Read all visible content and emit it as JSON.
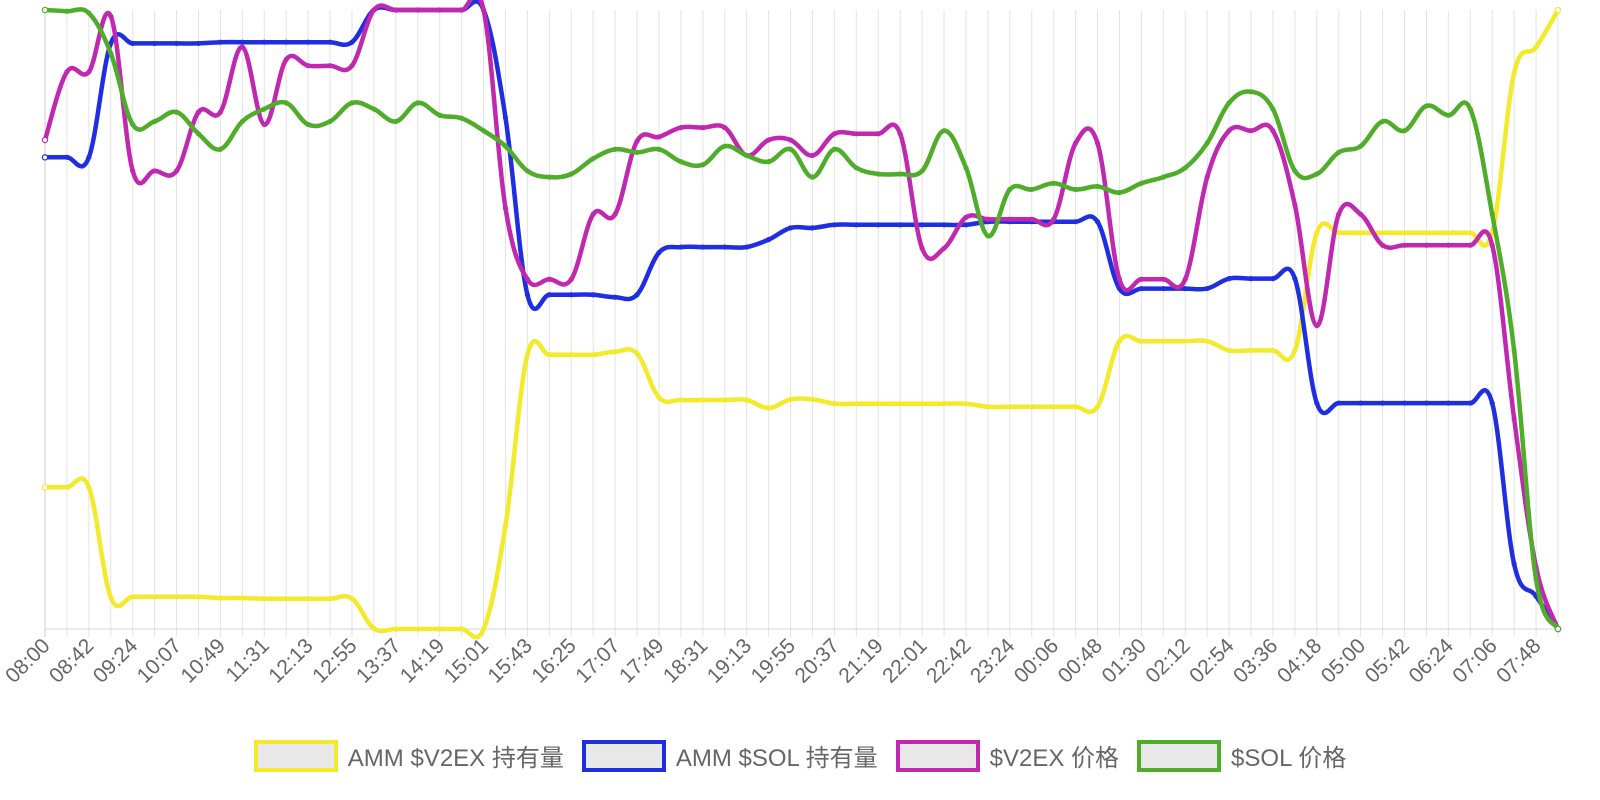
{
  "chart_data": {
    "type": "line",
    "title": "",
    "xlabel": "",
    "ylabel": "",
    "grid": {
      "vertical": true,
      "horizontal": false
    },
    "legend_position": "bottom",
    "y_axis_visible": false,
    "categories": [
      "08:00",
      "08:21",
      "08:42",
      "09:03",
      "09:24",
      "09:45",
      "10:07",
      "10:28",
      "10:49",
      "11:10",
      "11:31",
      "11:52",
      "12:13",
      "12:34",
      "12:55",
      "13:16",
      "13:37",
      "13:58",
      "14:19",
      "14:40",
      "15:01",
      "15:22",
      "15:43",
      "16:04",
      "16:25",
      "16:46",
      "17:07",
      "17:28",
      "17:49",
      "18:10",
      "18:31",
      "18:52",
      "19:13",
      "19:34",
      "19:55",
      "20:16",
      "20:37",
      "20:58",
      "21:19",
      "21:40",
      "22:01",
      "22:22",
      "22:42",
      "23:03",
      "23:24",
      "23:45",
      "00:06",
      "00:27",
      "00:48",
      "01:09",
      "01:30",
      "01:51",
      "02:12",
      "02:33",
      "02:54",
      "03:15",
      "03:36",
      "03:57",
      "04:18",
      "04:39",
      "05:00",
      "05:21",
      "05:42",
      "06:03",
      "06:24",
      "06:45",
      "07:06",
      "07:27",
      "07:48",
      "08:09"
    ],
    "tick_labels": [
      "08:00",
      "08:42",
      "09:24",
      "10:07",
      "10:49",
      "11:31",
      "12:13",
      "12:55",
      "13:37",
      "14:19",
      "15:01",
      "15:43",
      "16:25",
      "17:07",
      "17:49",
      "18:31",
      "19:13",
      "19:55",
      "20:37",
      "21:19",
      "22:01",
      "22:42",
      "23:24",
      "00:06",
      "00:48",
      "01:30",
      "02:12",
      "02:54",
      "03:36",
      "04:18",
      "05:00",
      "05:42",
      "06:24",
      "07:06",
      "07:48"
    ],
    "series": [
      {
        "name": "AMM $V2EX 持有量",
        "color": "#f2ea2a",
        "values": [
          22.9,
          22.9,
          22.9,
          5.1,
          5.2,
          5.2,
          5.2,
          5.2,
          5.0,
          5.0,
          4.9,
          4.9,
          4.9,
          4.9,
          4.9,
          0.1,
          0.0,
          0.0,
          0.0,
          0.0,
          0.0,
          16.7,
          44.3,
          44.3,
          44.3,
          44.3,
          44.8,
          44.5,
          37.4,
          37.0,
          37.0,
          37.0,
          37.0,
          35.7,
          37.1,
          37.1,
          36.4,
          36.4,
          36.4,
          36.4,
          36.4,
          36.4,
          36.4,
          35.9,
          35.9,
          35.9,
          35.9,
          35.9,
          35.9,
          46.5,
          46.5,
          46.5,
          46.5,
          46.5,
          45.0,
          45.0,
          45.0,
          45.0,
          64.0,
          64.0,
          64.0,
          64.0,
          64.0,
          64.0,
          64.0,
          64.0,
          64.0,
          89.8,
          94.0,
          100.0
        ]
      },
      {
        "name": "AMM $SOL 持有量",
        "color": "#1e2ee0",
        "values": [
          76.2,
          76.2,
          76.2,
          94.6,
          94.6,
          94.6,
          94.6,
          94.6,
          94.8,
          94.8,
          94.8,
          94.8,
          94.8,
          94.8,
          94.8,
          100.0,
          100.0,
          100.0,
          100.0,
          100.0,
          100.0,
          82.6,
          54.0,
          54.0,
          54.0,
          54.0,
          53.6,
          54.0,
          60.8,
          61.7,
          61.7,
          61.7,
          61.7,
          62.9,
          64.8,
          64.8,
          65.3,
          65.3,
          65.3,
          65.3,
          65.3,
          65.3,
          65.3,
          65.8,
          65.8,
          65.8,
          65.8,
          65.8,
          65.8,
          55.0,
          55.0,
          55.0,
          55.0,
          55.0,
          56.6,
          56.6,
          56.6,
          56.6,
          36.5,
          36.5,
          36.5,
          36.5,
          36.5,
          36.5,
          36.5,
          36.5,
          36.5,
          10.5,
          5.3,
          0.0
        ]
      },
      {
        "name": "$V2EX 价格",
        "color": "#c028b0",
        "values": [
          79.0,
          90.0,
          90.0,
          99.0,
          74.0,
          74.0,
          74.0,
          83.5,
          83.5,
          94.0,
          81.5,
          92.0,
          91.0,
          91.0,
          91.0,
          100.0,
          100.0,
          100.0,
          100.0,
          100.0,
          100.0,
          68.0,
          56.5,
          56.5,
          56.5,
          67.0,
          67.0,
          78.8,
          79.5,
          81.0,
          81.0,
          81.0,
          76.5,
          79.0,
          79.0,
          76.5,
          80.0,
          80.0,
          80.0,
          80.0,
          61.5,
          61.5,
          66.5,
          66.2,
          66.2,
          66.2,
          66.2,
          78.5,
          78.5,
          56.5,
          56.5,
          56.5,
          56.5,
          73.0,
          80.5,
          80.5,
          80.5,
          68.5,
          49.0,
          67.0,
          67.0,
          62.0,
          62.0,
          62.0,
          62.0,
          62.0,
          62.0,
          34.0,
          10.0,
          0.0
        ]
      },
      {
        "name": "$SOL 价格",
        "color": "#4fad2a",
        "values": [
          100.0,
          99.8,
          99.5,
          93.0,
          81.5,
          82.0,
          83.5,
          80.0,
          77.5,
          82.0,
          84.0,
          85.0,
          81.5,
          82.0,
          85.0,
          84.0,
          82.0,
          85.0,
          83.0,
          82.5,
          80.5,
          78.0,
          74.0,
          73.0,
          73.5,
          76.0,
          77.5,
          77.0,
          77.5,
          75.5,
          75.0,
          78.0,
          76.5,
          75.5,
          77.5,
          73.0,
          77.5,
          74.5,
          73.5,
          73.5,
          74.0,
          80.5,
          74.5,
          63.5,
          71.0,
          71.0,
          72.0,
          71.0,
          71.5,
          70.5,
          72.0,
          73.0,
          74.5,
          78.5,
          85.0,
          86.8,
          84.0,
          74.0,
          73.5,
          77.0,
          78.0,
          82.0,
          80.5,
          84.5,
          83.0,
          84.0,
          67.0,
          45.0,
          8.0,
          0.0
        ]
      }
    ]
  }
}
